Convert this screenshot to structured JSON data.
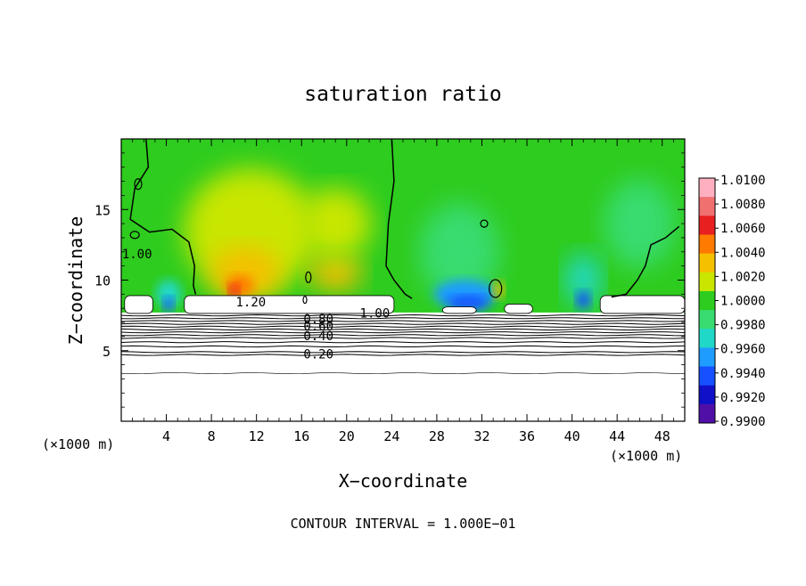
{
  "chart_data": {
    "type": "heatmap",
    "title": "saturation ratio",
    "xlabel": "X−coordinate",
    "ylabel": "Z−coordinate",
    "x_unit_label_left": "(×1000 m)",
    "x_unit_label_right": "(×1000 m)",
    "footer": "CONTOUR INTERVAL = 1.000E−01",
    "xlim": [
      0,
      50
    ],
    "ylim": [
      0,
      20
    ],
    "x_ticks": [
      4,
      8,
      12,
      16,
      20,
      24,
      28,
      32,
      36,
      40,
      44,
      48
    ],
    "x_tick_labels": [
      "4",
      "8",
      "12",
      "16",
      "20",
      "24",
      "28",
      "32",
      "36",
      "40",
      "44",
      "48"
    ],
    "y_ticks": [
      5,
      10,
      15
    ],
    "y_tick_labels": [
      "5",
      "10",
      "15"
    ],
    "colorbar": {
      "labels": [
        "1.0100",
        "1.0080",
        "1.0060",
        "1.0040",
        "1.0020",
        "1.0000",
        "0.9980",
        "0.9960",
        "0.9940",
        "0.9920",
        "0.9900"
      ],
      "colors": [
        "#ffb0c0",
        "#f07070",
        "#e82020",
        "#ff7a00",
        "#f5c000",
        "#c8e600",
        "#2ecc1e",
        "#38dc70",
        "#20d8c8",
        "#1e9cff",
        "#1650ff",
        "#1010c8",
        "#5010a8"
      ]
    },
    "contour_labels": [
      {
        "text": "1.00",
        "x": 1.4,
        "z": 11.8
      },
      {
        "text": "1.20",
        "x": 11.5,
        "z": 8.4
      },
      {
        "text": "1.00",
        "x": 22.5,
        "z": 7.6
      },
      {
        "text": "0.80",
        "x": 17.5,
        "z": 7.2
      },
      {
        "text": "0.60",
        "x": 17.5,
        "z": 6.7
      },
      {
        "text": "0.40",
        "x": 17.5,
        "z": 6.0
      },
      {
        "text": "0.20",
        "x": 17.5,
        "z": 4.7
      }
    ],
    "cloud_top_z": 7.7,
    "subcloud_contour_levels_z": [
      7.5,
      7.3,
      7.1,
      6.9,
      6.7,
      6.5,
      6.3,
      6.1,
      5.9,
      5.6,
      5.3,
      4.9,
      4.7,
      3.4
    ]
  }
}
